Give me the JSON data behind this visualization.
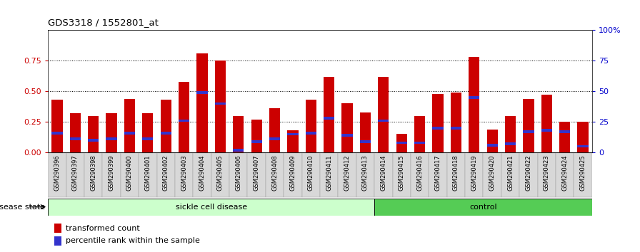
{
  "title": "GDS3318 / 1552801_at",
  "samples": [
    "GSM290396",
    "GSM290397",
    "GSM290398",
    "GSM290399",
    "GSM290400",
    "GSM290401",
    "GSM290402",
    "GSM290403",
    "GSM290404",
    "GSM290405",
    "GSM290406",
    "GSM290407",
    "GSM290408",
    "GSM290409",
    "GSM290410",
    "GSM290411",
    "GSM290412",
    "GSM290413",
    "GSM290414",
    "GSM290415",
    "GSM290416",
    "GSM290417",
    "GSM290418",
    "GSM290419",
    "GSM290420",
    "GSM290421",
    "GSM290422",
    "GSM290423",
    "GSM290424",
    "GSM290425"
  ],
  "transformed_count": [
    0.43,
    0.32,
    0.3,
    0.32,
    0.44,
    0.32,
    0.43,
    0.58,
    0.81,
    0.75,
    0.3,
    0.27,
    0.36,
    0.18,
    0.43,
    0.62,
    0.4,
    0.33,
    0.62,
    0.15,
    0.3,
    0.48,
    0.49,
    0.78,
    0.19,
    0.3,
    0.44,
    0.47,
    0.25,
    0.25
  ],
  "percentile_rank": [
    0.16,
    0.11,
    0.1,
    0.11,
    0.16,
    0.11,
    0.16,
    0.26,
    0.49,
    0.4,
    0.02,
    0.09,
    0.11,
    0.15,
    0.16,
    0.28,
    0.14,
    0.09,
    0.26,
    0.08,
    0.08,
    0.2,
    0.2,
    0.45,
    0.06,
    0.07,
    0.17,
    0.18,
    0.17,
    0.05
  ],
  "scd_count": 18,
  "ctrl_count": 12,
  "bar_color_red": "#CC0000",
  "bar_color_blue": "#3333CC",
  "sickle_color": "#CCFFCC",
  "control_color": "#55CC55",
  "bg_color": "#FFFFFF",
  "left_axis_color": "#CC0000",
  "right_axis_color": "#0000CC",
  "grid_color": "#000000",
  "yticks_left": [
    0,
    0.25,
    0.5,
    0.75
  ],
  "yticks_right": [
    0,
    0.25,
    0.5,
    0.75,
    1.0
  ],
  "ytick_labels_right": [
    "0",
    "25",
    "50",
    "75",
    "100%"
  ],
  "ylim": [
    0,
    1.0
  ]
}
